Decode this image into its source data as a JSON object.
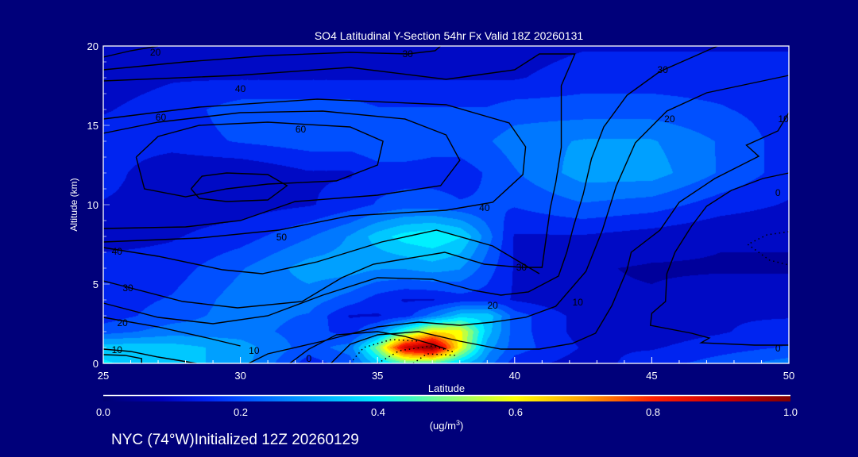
{
  "chart_data": {
    "type": "heatmap",
    "title": "SO4 Latitudinal Y-Section 54hr  Fx Valid 18Z 20260131",
    "xlabel": "Latitude",
    "ylabel": "Altitude (km)",
    "xlim": [
      25,
      50
    ],
    "ylim": [
      0,
      20
    ],
    "xticks": [
      "25",
      "30",
      "35",
      "40",
      "45",
      "50"
    ],
    "yticks": [
      "0",
      "5",
      "10",
      "15",
      "20"
    ],
    "colorbar": {
      "ticks": [
        "0.0",
        "0.2",
        "0.4",
        "0.6",
        "0.8",
        "1.0"
      ],
      "range": [
        0,
        1
      ],
      "units": "(ug/m",
      "units_sup": "3",
      "units_close": ")"
    },
    "footer": "NYC (74°W)Initialized 12Z 20260129",
    "field": {
      "lat": [
        25,
        27.5,
        30,
        32.5,
        34,
        35,
        36,
        37,
        38,
        39,
        40,
        42.5,
        45,
        47.5,
        50
      ],
      "alt": [
        0,
        1,
        2,
        3,
        4,
        6,
        8,
        10,
        12,
        14,
        16,
        18,
        20
      ],
      "values": [
        [
          0.38,
          0.35,
          0.3,
          0.15,
          0.2,
          0.35,
          0.45,
          0.45,
          0.35,
          0.25,
          0.15,
          0.1,
          0.15,
          0.2,
          0.25
        ],
        [
          0.36,
          0.35,
          0.3,
          0.2,
          0.25,
          0.5,
          0.9,
          1.0,
          0.6,
          0.3,
          0.2,
          0.12,
          0.12,
          0.15,
          0.18
        ],
        [
          0.2,
          0.25,
          0.25,
          0.2,
          0.15,
          0.25,
          0.45,
          0.62,
          0.6,
          0.35,
          0.2,
          0.1,
          0.1,
          0.12,
          0.15
        ],
        [
          0.15,
          0.2,
          0.25,
          0.22,
          0.12,
          0.12,
          0.15,
          0.25,
          0.35,
          0.36,
          0.2,
          0.1,
          0.1,
          0.12,
          0.12
        ],
        [
          0.15,
          0.18,
          0.25,
          0.25,
          0.2,
          0.15,
          0.12,
          0.12,
          0.15,
          0.15,
          0.12,
          0.08,
          0.08,
          0.1,
          0.1
        ],
        [
          0.15,
          0.15,
          0.22,
          0.3,
          0.3,
          0.28,
          0.28,
          0.3,
          0.28,
          0.2,
          0.12,
          0.08,
          0.07,
          0.07,
          0.07
        ],
        [
          0.1,
          0.12,
          0.15,
          0.22,
          0.28,
          0.35,
          0.4,
          0.42,
          0.38,
          0.25,
          0.12,
          0.12,
          0.1,
          0.08,
          0.08
        ],
        [
          0.12,
          0.1,
          0.1,
          0.12,
          0.15,
          0.18,
          0.2,
          0.2,
          0.18,
          0.18,
          0.18,
          0.22,
          0.2,
          0.15,
          0.12
        ],
        [
          0.15,
          0.08,
          0.08,
          0.12,
          0.12,
          0.15,
          0.15,
          0.15,
          0.15,
          0.18,
          0.22,
          0.3,
          0.3,
          0.22,
          0.15
        ],
        [
          0.15,
          0.15,
          0.18,
          0.2,
          0.2,
          0.22,
          0.22,
          0.2,
          0.2,
          0.22,
          0.25,
          0.28,
          0.28,
          0.22,
          0.15
        ],
        [
          0.12,
          0.15,
          0.2,
          0.2,
          0.2,
          0.18,
          0.18,
          0.18,
          0.18,
          0.18,
          0.2,
          0.2,
          0.2,
          0.18,
          0.15
        ],
        [
          0.1,
          0.12,
          0.12,
          0.12,
          0.12,
          0.12,
          0.12,
          0.12,
          0.12,
          0.12,
          0.12,
          0.15,
          0.15,
          0.15,
          0.15
        ],
        [
          0.1,
          0.1,
          0.1,
          0.1,
          0.1,
          0.1,
          0.1,
          0.1,
          0.1,
          0.1,
          0.1,
          0.12,
          0.12,
          0.12,
          0.12
        ]
      ]
    },
    "contours": [
      {
        "level": 20,
        "dashed": false,
        "points": [
          [
            25,
            19.3
          ],
          [
            26,
            19.7
          ],
          [
            27,
            20
          ]
        ]
      },
      {
        "level": 30,
        "dashed": false,
        "points": [
          [
            25,
            18.5
          ],
          [
            28,
            19
          ],
          [
            31,
            19.4
          ],
          [
            34,
            19.6
          ],
          [
            36.1,
            19.5
          ],
          [
            37.1,
            19.7
          ],
          [
            37.3,
            20
          ]
        ]
      },
      {
        "level": 30,
        "dashed": false,
        "points": [
          [
            25,
            17.8
          ],
          [
            29.9,
            18.15
          ],
          [
            34,
            18.65
          ],
          [
            37.5,
            17.9
          ],
          [
            40,
            18.5
          ],
          [
            40.9,
            19.5
          ],
          [
            42.2,
            19.5
          ],
          [
            41.7,
            17.5
          ],
          [
            41.7,
            15.6
          ],
          [
            41.7,
            13.6
          ],
          [
            41.5,
            11.4
          ],
          [
            41.3,
            9.8
          ],
          [
            41,
            6.05
          ],
          [
            40.25,
            6.05
          ],
          [
            38.9,
            6.25
          ],
          [
            37.45,
            7
          ],
          [
            34.85,
            6.25
          ],
          [
            33.7,
            5.4
          ],
          [
            32.25,
            3.9
          ],
          [
            29.9,
            3.5
          ],
          [
            27.9,
            3.9
          ],
          [
            25,
            5.2
          ]
        ]
      },
      {
        "level": 40,
        "dashed": false,
        "points": [
          [
            25,
            15.4
          ],
          [
            28.5,
            16.15
          ],
          [
            32.8,
            16.65
          ],
          [
            37.5,
            16.3
          ],
          [
            39.8,
            15.15
          ],
          [
            40.4,
            13.65
          ],
          [
            40.3,
            11.9
          ],
          [
            39.2,
            10.15
          ],
          [
            37.5,
            9.65
          ],
          [
            34,
            9.3
          ],
          [
            31.4,
            8.4
          ],
          [
            28.5,
            7.9
          ],
          [
            25,
            7.65
          ]
        ]
      },
      {
        "level": 50,
        "dashed": false,
        "points": [
          [
            25,
            14.5
          ],
          [
            27,
            15.2
          ],
          [
            30,
            15.8
          ],
          [
            33,
            15.9
          ],
          [
            36,
            15.4
          ],
          [
            37.5,
            14.4
          ],
          [
            38,
            12.8
          ],
          [
            37.3,
            11.2
          ],
          [
            35,
            10.6
          ],
          [
            32,
            10.2
          ],
          [
            30,
            9
          ],
          [
            28,
            8.6
          ],
          [
            25,
            8.5
          ]
        ]
      },
      {
        "level": 60,
        "dashed": false,
        "points": [
          [
            26.2,
            13
          ],
          [
            27,
            14.3
          ],
          [
            28.5,
            15
          ],
          [
            31,
            15.2
          ],
          [
            34,
            14.9
          ],
          [
            35.2,
            14
          ],
          [
            35,
            12.5
          ],
          [
            33.5,
            11.5
          ],
          [
            31,
            11.3
          ],
          [
            29.5,
            11
          ],
          [
            28,
            10.5
          ],
          [
            26.5,
            11
          ],
          [
            26.2,
            13
          ]
        ]
      },
      {
        "level": 70,
        "dashed": false,
        "points": [
          [
            28.2,
            11
          ],
          [
            28.6,
            11.8
          ],
          [
            29.5,
            12
          ],
          [
            31,
            11.9
          ],
          [
            31.7,
            11.2
          ],
          [
            31,
            10.3
          ],
          [
            29.5,
            10.2
          ],
          [
            28.5,
            10.4
          ],
          [
            28.2,
            11
          ]
        ]
      },
      {
        "level": 40,
        "dashed": false,
        "points": [
          [
            25,
            7.3
          ],
          [
            27,
            6.75
          ],
          [
            29.35,
            5.9
          ],
          [
            30.8,
            5.65
          ],
          [
            32.8,
            6.4
          ],
          [
            35.15,
            7.65
          ],
          [
            37.15,
            8.4
          ],
          [
            39.2,
            7.4
          ],
          [
            40.9,
            5.65
          ]
        ]
      },
      {
        "level": 30,
        "dashed": false,
        "points": [
          [
            47.4,
            20
          ],
          [
            45.3,
            18.4
          ],
          [
            44.1,
            16.9
          ],
          [
            43.25,
            14.9
          ],
          [
            42.8,
            12.9
          ],
          [
            42.5,
            10.65
          ],
          [
            42.15,
            8.65
          ],
          [
            41.9,
            7
          ],
          [
            41.6,
            5.5
          ],
          [
            40.5,
            4.5
          ],
          [
            39.5,
            4.3
          ],
          [
            38.5,
            4.6
          ],
          [
            37,
            5.3
          ],
          [
            35,
            5.4
          ],
          [
            33,
            4.3
          ],
          [
            31,
            3
          ],
          [
            29,
            2.5
          ],
          [
            27,
            2.9
          ],
          [
            25,
            3.8
          ]
        ]
      },
      {
        "level": 20,
        "dashed": false,
        "points": [
          [
            50,
            18.15
          ],
          [
            47,
            17.05
          ],
          [
            45.55,
            15.9
          ],
          [
            44.4,
            13.9
          ],
          [
            43.7,
            11.15
          ],
          [
            43.2,
            8.4
          ],
          [
            42.6,
            5.8
          ],
          [
            41.5,
            3.6
          ],
          [
            40.4,
            2.9
          ],
          [
            39.2,
            2.6
          ],
          [
            38,
            2.4
          ],
          [
            36.5,
            2.6
          ],
          [
            35,
            2.3
          ],
          [
            33,
            1.4
          ],
          [
            31,
            0.6
          ],
          [
            30.3,
            0
          ]
        ]
      },
      {
        "level": 20,
        "dashed": false,
        "points": [
          [
            25,
            2.9
          ],
          [
            27,
            2.3
          ],
          [
            28.8,
            1.6
          ],
          [
            30,
            1.1
          ]
        ]
      },
      {
        "level": 10,
        "dashed": false,
        "points": [
          [
            50,
            15.8
          ],
          [
            49.6,
            14.65
          ],
          [
            48.45,
            13.75
          ],
          [
            48.9,
            13.05
          ],
          [
            47.3,
            11.65
          ],
          [
            46,
            10.15
          ],
          [
            45.3,
            8.4
          ],
          [
            44.25,
            7
          ],
          [
            44.1,
            5.9
          ],
          [
            43.55,
            3.65
          ],
          [
            42.95,
            1.9
          ],
          [
            42.1,
            1.25
          ],
          [
            40.9,
            0.9
          ],
          [
            39.5,
            0.9
          ],
          [
            38,
            1.4
          ],
          [
            36.5,
            2
          ],
          [
            35,
            1.8
          ],
          [
            34,
            1.2
          ],
          [
            33.3,
            0
          ]
        ]
      },
      {
        "level": 0,
        "dashed": false,
        "points": [
          [
            50,
            12
          ],
          [
            49.05,
            11.65
          ],
          [
            47.9,
            10.9
          ],
          [
            47,
            9.9
          ],
          [
            46.45,
            8.65
          ],
          [
            45.85,
            7
          ],
          [
            45.55,
            5.65
          ],
          [
            45.5,
            3.9
          ],
          [
            45,
            3.15
          ],
          [
            44.95,
            2.4
          ],
          [
            46.45,
            1.9
          ],
          [
            47.1,
            1.6
          ],
          [
            46.8,
            1.3
          ],
          [
            48.75,
            1.15
          ],
          [
            50,
            1.15
          ]
        ]
      },
      {
        "level": 10,
        "dashed": false,
        "points": [
          [
            25,
            0.9
          ],
          [
            26,
            0.75
          ],
          [
            27,
            0.4
          ],
          [
            28.4,
            0
          ]
        ]
      },
      {
        "level": 10,
        "dashed": false,
        "points": [
          [
            25,
            0.55
          ],
          [
            25.8,
            0.5
          ],
          [
            26.4,
            0.3
          ],
          [
            26.4,
            0
          ]
        ]
      },
      {
        "level": 0,
        "dashed": false,
        "points": [
          [
            31.8,
            0
          ],
          [
            32.5,
            0.9
          ],
          [
            33.5,
            1.8
          ],
          [
            35,
            2
          ],
          [
            36,
            1.7
          ],
          [
            37,
            1.2
          ],
          [
            37.5,
            0.9
          ]
        ]
      },
      {
        "level": -10,
        "dashed": true,
        "points": [
          [
            34,
            0
          ],
          [
            34.5,
            1
          ],
          [
            35.5,
            1.5
          ],
          [
            36.5,
            1.4
          ]
        ]
      },
      {
        "level": -10,
        "dashed": true,
        "points": [
          [
            35,
            0
          ],
          [
            35.8,
            0.8
          ],
          [
            37,
            1.1
          ],
          [
            37.8,
            0.7
          ]
        ]
      },
      {
        "level": -10,
        "dashed": true,
        "points": [
          [
            36.3,
            0
          ],
          [
            36.8,
            0.6
          ],
          [
            37.9,
            0.5
          ]
        ]
      },
      {
        "level": -10,
        "dashed": true,
        "points": [
          [
            50,
            8.3
          ],
          [
            49.2,
            8.1
          ],
          [
            48.5,
            7.5
          ],
          [
            49.3,
            6.5
          ],
          [
            50,
            6.2
          ]
        ]
      }
    ],
    "contour_labels": [
      {
        "text": "20",
        "lat": 26.9,
        "alt": 19.6
      },
      {
        "text": "30",
        "lat": 36.1,
        "alt": 19.5
      },
      {
        "text": "40",
        "lat": 30.0,
        "alt": 17.3
      },
      {
        "text": "60",
        "lat": 27.1,
        "alt": 15.5
      },
      {
        "text": "60",
        "lat": 32.2,
        "alt": 14.75
      },
      {
        "text": "50",
        "lat": 31.5,
        "alt": 7.95
      },
      {
        "text": "40",
        "lat": 25.5,
        "alt": 7.05
      },
      {
        "text": "30",
        "lat": 25.9,
        "alt": 4.75
      },
      {
        "text": "20",
        "lat": 25.7,
        "alt": 2.55
      },
      {
        "text": "10",
        "lat": 25.5,
        "alt": 0.85
      },
      {
        "text": "10",
        "lat": 30.5,
        "alt": 0.8
      },
      {
        "text": "0",
        "lat": 32.5,
        "alt": 0.3
      },
      {
        "text": "40",
        "lat": 38.9,
        "alt": 9.8
      },
      {
        "text": "30",
        "lat": 40.25,
        "alt": 6.05
      },
      {
        "text": "20",
        "lat": 39.2,
        "alt": 3.65
      },
      {
        "text": "10",
        "lat": 42.3,
        "alt": 3.85
      },
      {
        "text": "30",
        "lat": 45.4,
        "alt": 18.5
      },
      {
        "text": "20",
        "lat": 45.65,
        "alt": 15.4
      },
      {
        "text": "10",
        "lat": 49.8,
        "alt": 15.4
      },
      {
        "text": "0",
        "lat": 49.6,
        "alt": 10.75
      },
      {
        "text": "0",
        "lat": 49.6,
        "alt": 0.95
      }
    ],
    "colormap": [
      [
        0.0,
        "#000070"
      ],
      [
        0.08,
        "#0000b4"
      ],
      [
        0.15,
        "#0024f0"
      ],
      [
        0.2,
        "#0050ff"
      ],
      [
        0.3,
        "#00a0ff"
      ],
      [
        0.4,
        "#00f0ff"
      ],
      [
        0.5,
        "#80ff80"
      ],
      [
        0.6,
        "#ffff00"
      ],
      [
        0.7,
        "#ffa000"
      ],
      [
        0.8,
        "#ff2000"
      ],
      [
        0.9,
        "#d00000"
      ],
      [
        1.0,
        "#800000"
      ]
    ]
  }
}
